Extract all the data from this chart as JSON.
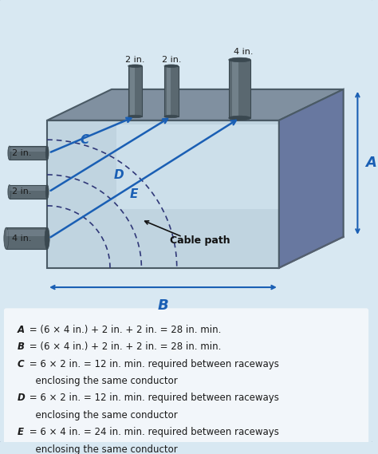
{
  "bg_color": "#d8e8f2",
  "box_front_color": "#b8cdd8",
  "box_front_gradient_top": "#c8dde8",
  "box_front_gradient_bot": "#a0b8c8",
  "box_top_color": "#8899a8",
  "box_right_color": "#6e8898",
  "box_edge_color": "#4a5a65",
  "conduit_body": "#5a6870",
  "conduit_highlight": "#8a9aa5",
  "conduit_dark": "#3a4850",
  "arrow_color": "#1a5fb4",
  "dim_color": "#1a5fb4",
  "label_color": "#1a5fb4",
  "arc_color": "#303878",
  "text_color": "#1a1a1a",
  "white_bg": "#f0f4f8",
  "formula_lines": [
    [
      "A",
      " = (6 × 4 in.) + 2 in. + 2 in. = 28 in. min."
    ],
    [
      "B",
      " = (6 × 4 in.) + 2 in. + 2 in. = 28 in. min."
    ],
    [
      "C",
      " = 6 × 2 in. = 12 in. min. required between raceways"
    ],
    [
      "",
      "      enclosing the same conductor"
    ],
    [
      "D",
      " = 6 × 2 in. = 12 in. min. required between raceways"
    ],
    [
      "",
      "      enclosing the same conductor"
    ],
    [
      "E",
      " = 6 × 4 in. = 24 in. min. required between raceways"
    ],
    [
      "",
      "      enclosing the same conductor"
    ]
  ]
}
